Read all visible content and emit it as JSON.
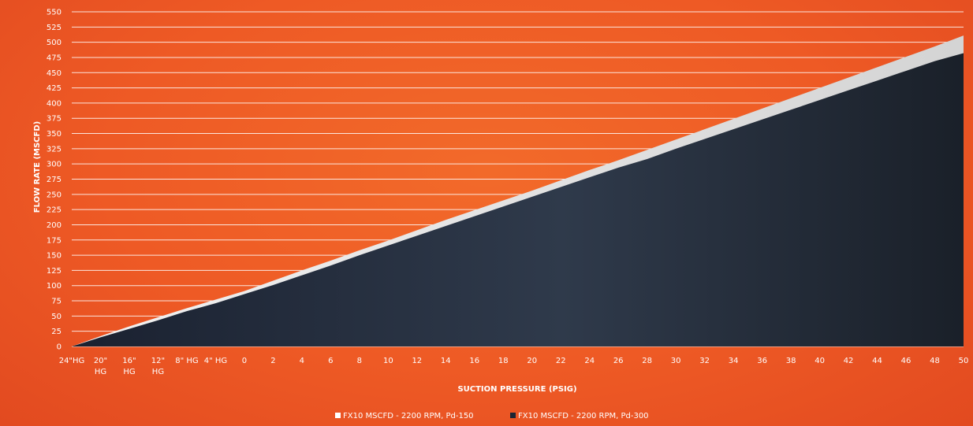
{
  "chart_data": {
    "type": "area",
    "xlabel": "SUCTION PRESSURE (PSIG)",
    "ylabel": "FLOW RATE (MSCFD)",
    "ylim": [
      0,
      550
    ],
    "yticks": [
      0,
      25,
      50,
      75,
      100,
      125,
      150,
      175,
      200,
      225,
      250,
      275,
      300,
      325,
      350,
      375,
      400,
      425,
      450,
      475,
      500,
      525,
      550
    ],
    "categories": [
      "24\"HG",
      "20\" HG",
      "16\" HG",
      "12\" HG",
      "8\" HG",
      "4\" HG",
      "0",
      "2",
      "4",
      "6",
      "8",
      "10",
      "12",
      "14",
      "16",
      "18",
      "20",
      "22",
      "24",
      "26",
      "28",
      "30",
      "32",
      "34",
      "36",
      "38",
      "40",
      "42",
      "44",
      "46",
      "48",
      "50"
    ],
    "grid": true,
    "legend_position": "bottom-center",
    "series": [
      {
        "name": "FX10 MSCFD - 2200 RPM, Pd-150",
        "color": "#e6e6e6",
        "values": [
          0,
          17,
          33,
          48,
          63,
          77,
          91,
          108,
          125,
          141,
          158,
          174,
          191,
          208,
          224,
          240,
          256,
          273,
          290,
          306,
          323,
          340,
          357,
          374,
          391,
          408,
          425,
          442,
          459,
          476,
          493,
          511
        ]
      },
      {
        "name": "FX10 MSCFD - 2200 RPM, Pd-300",
        "color": "#1c2533",
        "values": [
          0,
          15,
          29,
          43,
          58,
          71,
          86,
          101,
          117,
          133,
          150,
          166,
          182,
          198,
          214,
          230,
          246,
          262,
          278,
          294,
          308,
          325,
          341,
          357,
          373,
          389,
          405,
          421,
          437,
          453,
          469,
          482
        ]
      }
    ]
  }
}
